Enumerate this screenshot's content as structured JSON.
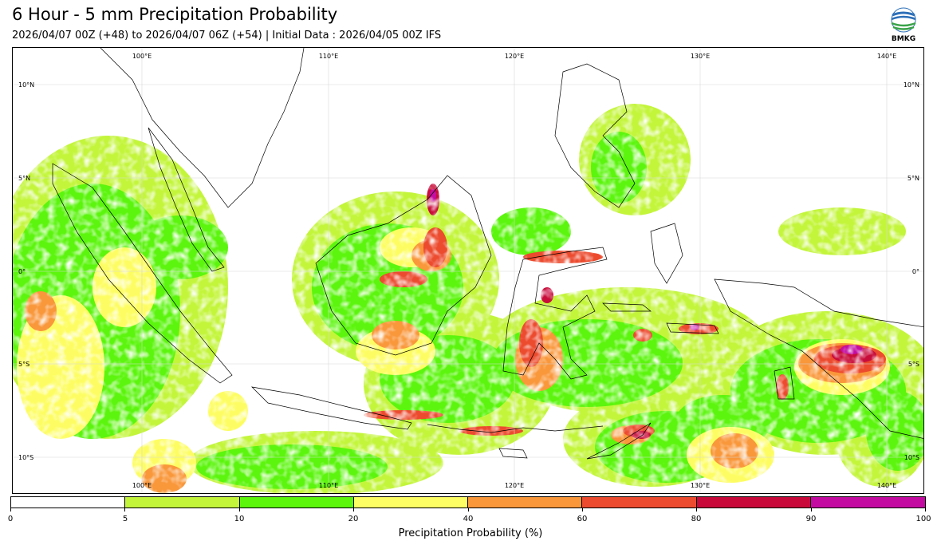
{
  "header": {
    "title": "6 Hour - 5 mm Precipitation Probability",
    "subtitle": "2026/04/07 00Z (+48) to 2026/04/07 06Z (+54) | Initial Data : 2026/04/05 00Z IFS",
    "logo_text": "BMKG"
  },
  "map": {
    "lon_labels": [
      "100°E",
      "110°E",
      "120°E",
      "130°E",
      "140°E"
    ],
    "lat_labels": [
      "10°N",
      "5°N",
      "0°",
      "5°S",
      "10°S"
    ],
    "lon_range": [
      95,
      141.5
    ],
    "lat_range": [
      12,
      -12
    ]
  },
  "colorbar": {
    "label": "Precipitation Probability (%)",
    "ticks": [
      "0",
      "5",
      "10",
      "20",
      "40",
      "60",
      "80",
      "90",
      "100"
    ],
    "colors": [
      "#ffffff",
      "#c3f53b",
      "#5cf50c",
      "#fdfd64",
      "#f9973a",
      "#ec4b2f",
      "#c8093a",
      "#c40ba1"
    ]
  },
  "colors": {
    "p5": "#c3f53b",
    "p10": "#5cf50c",
    "p20": "#fdfd64",
    "p40": "#f9973a",
    "p60": "#ec4b2f",
    "p80": "#c8093a",
    "p90": "#c40ba1"
  }
}
